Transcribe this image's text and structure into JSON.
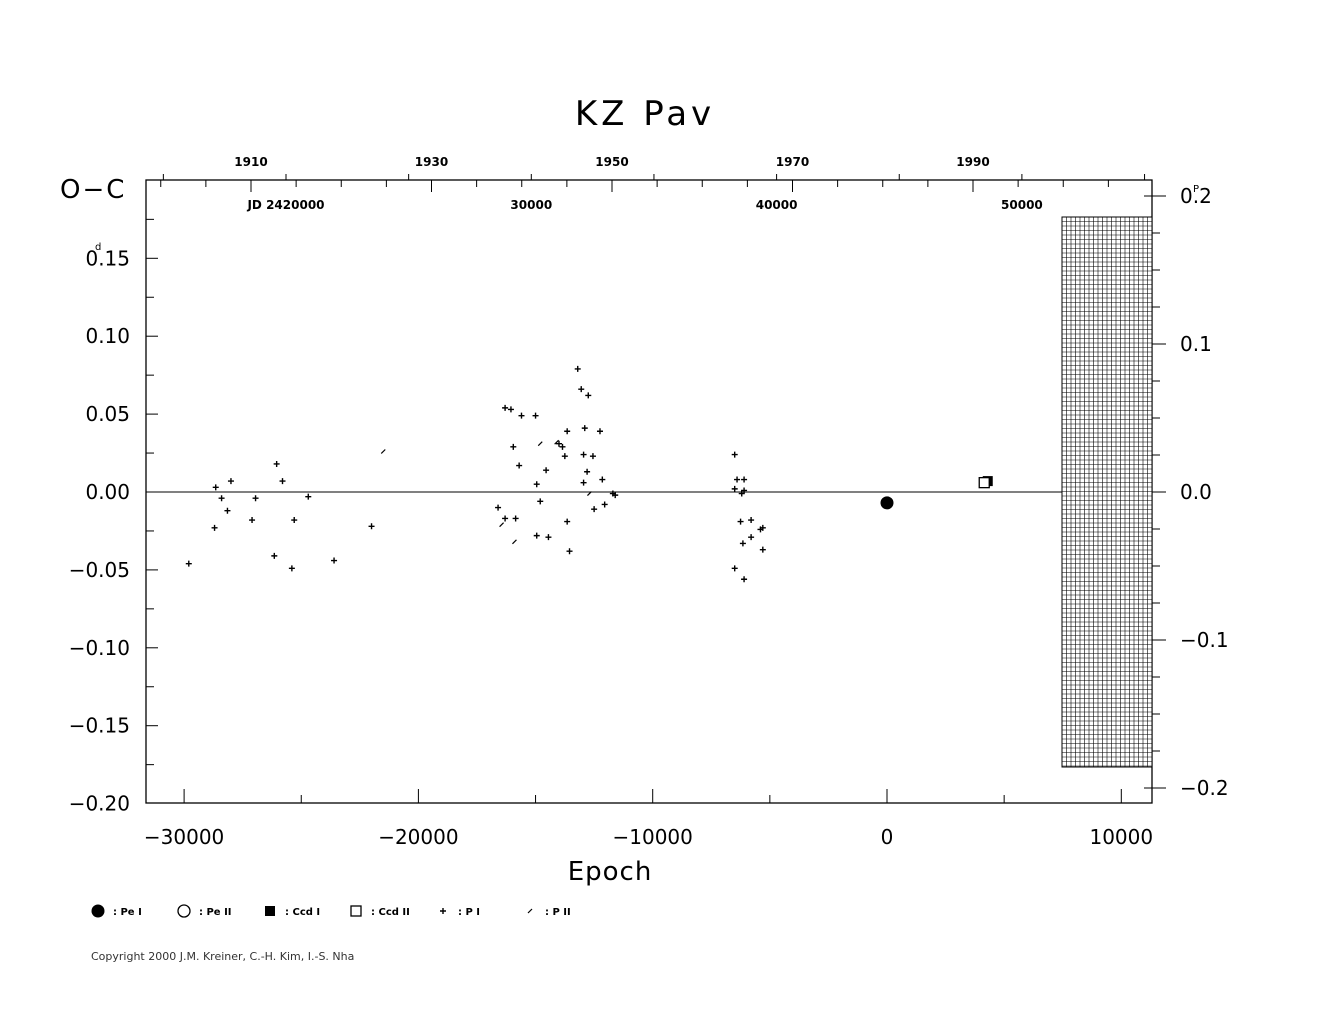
{
  "chart_data": {
    "type": "scatter",
    "title": "KZ  Pav",
    "xlabel": "Epoch",
    "ylabel": "O−C",
    "ylabel_unit": "d",
    "right_unit": "P",
    "xlim": [
      -31500,
      11500
    ],
    "ylim": [
      -0.2,
      0.2
    ],
    "x_ticks": [
      -30000,
      -20000,
      -10000,
      0,
      10000
    ],
    "x_tick_labels": [
      "−30000",
      "−20000",
      "−10000",
      "0",
      "10000"
    ],
    "y_ticks": [
      -0.2,
      -0.15,
      -0.1,
      -0.05,
      0.0,
      0.05,
      0.1,
      0.15
    ],
    "y_tick_labels": [
      "−0.20",
      "−0.15",
      "−0.10",
      "−0.05",
      "0.00",
      "0.05",
      "0.10",
      "0.15"
    ],
    "y_top_label": "0.2",
    "right_ticks": [
      -0.2,
      -0.1,
      0.0,
      0.1,
      0.2
    ],
    "right_tick_labels": [
      "−0.2",
      "−0.1",
      "0.0",
      "0.1",
      "0.2"
    ],
    "right_top_label": "0.2",
    "year_ticks": [
      {
        "year": 1910,
        "label": "1910"
      },
      {
        "year": 1930,
        "label": "1930"
      },
      {
        "year": 1950,
        "label": "1950"
      },
      {
        "year": 1970,
        "label": "1970"
      },
      {
        "year": 1990,
        "label": "1990"
      }
    ],
    "jd_ticks": [
      {
        "jd": 2420000,
        "label": "JD  2420000"
      },
      {
        "jd": 2430000,
        "label": "30000"
      },
      {
        "jd": 2440000,
        "label": "40000"
      },
      {
        "jd": 2450000,
        "label": "50000"
      }
    ],
    "grid": false,
    "hatched_region_epoch_from": 7400,
    "series": [
      {
        "name": "Pe I",
        "marker": "filled-circle",
        "points": [
          [
            0,
            -0.007
          ]
        ]
      },
      {
        "name": "Pe II",
        "marker": "open-circle",
        "points": []
      },
      {
        "name": "Ccd I",
        "marker": "filled-square",
        "points": [
          [
            4300,
            0.007
          ]
        ]
      },
      {
        "name": "Ccd II",
        "marker": "open-square",
        "points": [
          [
            4150,
            0.006
          ]
        ]
      },
      {
        "name": "P I",
        "marker": "plus",
        "points": [
          [
            -29800,
            -0.046
          ],
          [
            -28700,
            -0.023
          ],
          [
            -28650,
            0.003
          ],
          [
            -28400,
            -0.004
          ],
          [
            -28150,
            -0.012
          ],
          [
            -28000,
            0.007
          ],
          [
            -27100,
            -0.018
          ],
          [
            -26950,
            -0.004
          ],
          [
            -26150,
            -0.041
          ],
          [
            -26050,
            0.018
          ],
          [
            -25800,
            0.007
          ],
          [
            -25400,
            -0.049
          ],
          [
            -25300,
            -0.018
          ],
          [
            -24700,
            -0.003
          ],
          [
            -23600,
            -0.044
          ],
          [
            -22000,
            -0.022
          ],
          [
            -16600,
            -0.01
          ],
          [
            -16300,
            0.054
          ],
          [
            -16300,
            -0.017
          ],
          [
            -16050,
            0.053
          ],
          [
            -15950,
            0.029
          ],
          [
            -15850,
            -0.017
          ],
          [
            -15700,
            0.017
          ],
          [
            -15600,
            0.049
          ],
          [
            -15000,
            0.049
          ],
          [
            -14950,
            0.005
          ],
          [
            -14950,
            -0.028
          ],
          [
            -14800,
            -0.006
          ],
          [
            -14550,
            0.014
          ],
          [
            -14450,
            -0.029
          ],
          [
            -14000,
            0.031
          ],
          [
            -13850,
            0.029
          ],
          [
            -13750,
            0.023
          ],
          [
            -13650,
            0.039
          ],
          [
            -13650,
            -0.019
          ],
          [
            -13550,
            -0.038
          ],
          [
            -13200,
            0.079
          ],
          [
            -13050,
            0.066
          ],
          [
            -12950,
            0.024
          ],
          [
            -12950,
            0.006
          ],
          [
            -12900,
            0.041
          ],
          [
            -12750,
            0.062
          ],
          [
            -12800,
            0.013
          ],
          [
            -12550,
            0.023
          ],
          [
            -12500,
            -0.011
          ],
          [
            -12250,
            0.039
          ],
          [
            -12150,
            0.008
          ],
          [
            -12050,
            -0.008
          ],
          [
            -11700,
            -0.001
          ],
          [
            -11600,
            -0.002
          ],
          [
            -6500,
            0.024
          ],
          [
            -6500,
            -0.049
          ],
          [
            -6500,
            0.002
          ],
          [
            -6400,
            0.008
          ],
          [
            -6250,
            -0.019
          ],
          [
            -6200,
            -0.001
          ],
          [
            -6150,
            -0.033
          ],
          [
            -6100,
            0.008
          ],
          [
            -6100,
            -0.056
          ],
          [
            -6100,
            0.001
          ],
          [
            -5800,
            -0.018
          ],
          [
            -5800,
            -0.029
          ],
          [
            -5400,
            -0.024
          ],
          [
            -5300,
            -0.023
          ],
          [
            -5300,
            -0.037
          ]
        ]
      },
      {
        "name": "P II",
        "marker": "x-small",
        "points": [
          [
            -21500,
            0.026
          ],
          [
            -16450,
            -0.021
          ],
          [
            -15900,
            -0.032
          ],
          [
            -14800,
            0.031
          ],
          [
            -14100,
            0.032
          ],
          [
            -12700,
            -0.001
          ]
        ]
      }
    ],
    "legend": [
      {
        "marker": "filled-circle",
        "label": ": Pe I"
      },
      {
        "marker": "open-circle",
        "label": ": Pe II"
      },
      {
        "marker": "filled-square",
        "label": ": Ccd I"
      },
      {
        "marker": "open-square",
        "label": ": Ccd II"
      },
      {
        "marker": "plus",
        "label": ": P I"
      },
      {
        "marker": "x-small",
        "label": ": P II"
      }
    ],
    "legend_position": "bottom-left"
  },
  "copyright": "Copyright 2000 J.M. Kreiner, C.-H. Kim, I.-S. Nha"
}
